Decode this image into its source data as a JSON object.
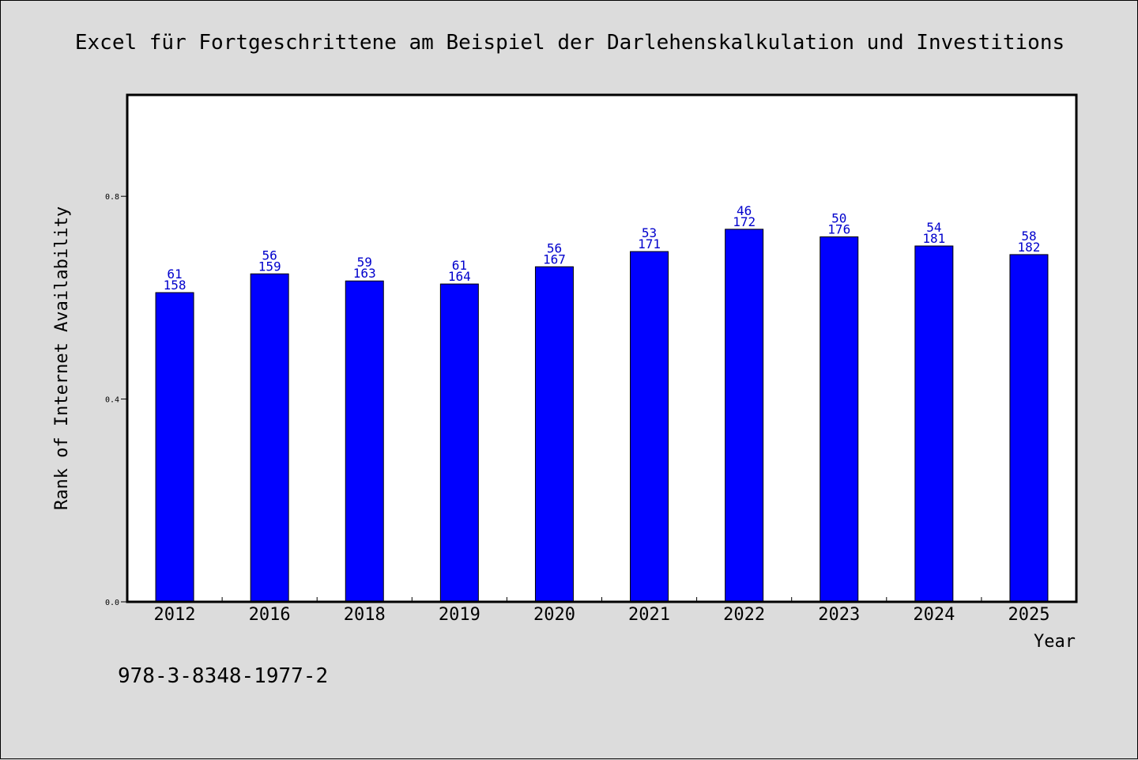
{
  "chart_data": {
    "type": "bar",
    "title": "Excel für Fortgeschrittene am Beispiel der Darlehenskalkulation und Investitions",
    "xlabel": "Year",
    "ylabel": "Rank of Internet Availability",
    "categories": [
      "2012",
      "2016",
      "2018",
      "2019",
      "2020",
      "2021",
      "2022",
      "2023",
      "2024",
      "2025"
    ],
    "values": [
      0.61,
      0.647,
      0.633,
      0.627,
      0.661,
      0.691,
      0.735,
      0.72,
      0.702,
      0.685
    ],
    "labels_top": [
      "61",
      "56",
      "59",
      "61",
      "56",
      "53",
      "46",
      "50",
      "54",
      "58"
    ],
    "labels_bottom": [
      "158",
      "159",
      "163",
      "164",
      "167",
      "171",
      "172",
      "176",
      "181",
      "182"
    ],
    "ylim": [
      0,
      1.0
    ],
    "yticks": [
      0.0,
      0.4,
      0.8
    ],
    "ytick_labels": [
      "0.0",
      "0.4",
      "0.8"
    ],
    "grid": false,
    "bar_color": "#0000ff",
    "label_color": "#0000cc"
  },
  "footnote": "978-3-8348-1977-2"
}
